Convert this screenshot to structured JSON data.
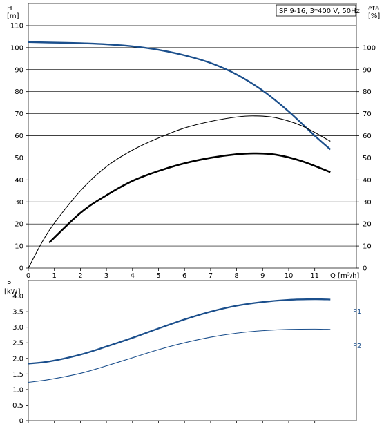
{
  "chart_data": [
    {
      "type": "line",
      "title": "SP 9-16, 3*400 V, 50Hz",
      "ylabel_left": [
        "H",
        "[m]"
      ],
      "ylabel_right": [
        "eta",
        "[%]"
      ],
      "xlabel": "Q [m³/h]",
      "xlim": [
        0,
        12.6
      ],
      "ylim": [
        0,
        120
      ],
      "x_ticks": [
        "0",
        "1",
        "2",
        "3",
        "4",
        "5",
        "6",
        "7",
        "8",
        "9",
        "10",
        "11"
      ],
      "y_ticks_left": [
        "0",
        "10",
        "20",
        "30",
        "40",
        "50",
        "60",
        "70",
        "80",
        "90",
        "100",
        "110"
      ],
      "y_ticks_right": [
        "0",
        "10",
        "20",
        "30",
        "40",
        "50",
        "60",
        "70",
        "80",
        "90",
        "100"
      ],
      "grid": "horizontal",
      "series": [
        {
          "color": "#1b4f8c",
          "points": [
            [
              0,
              102.5
            ],
            [
              0.8,
              102.3
            ],
            [
              2,
              102
            ],
            [
              3,
              101.5
            ],
            [
              4,
              100.6
            ],
            [
              5,
              99
            ],
            [
              6,
              96.5
            ],
            [
              7,
              93
            ],
            [
              8,
              87.8
            ],
            [
              9,
              80.5
            ],
            [
              10,
              71
            ],
            [
              11,
              60
            ],
            [
              11.6,
              53.8
            ]
          ]
        },
        {
          "color": "#000000",
          "points": [
            [
              0,
              0
            ],
            [
              0.8,
              17
            ],
            [
              2,
              35
            ],
            [
              3,
              46
            ],
            [
              4,
              53.5
            ],
            [
              5,
              59
            ],
            [
              6,
              63.5
            ],
            [
              7,
              66.5
            ],
            [
              8,
              68.5
            ],
            [
              8.7,
              69
            ],
            [
              9.5,
              68.2
            ],
            [
              10.5,
              64.5
            ],
            [
              11.6,
              57.5
            ]
          ]
        },
        {
          "color": "#000000",
          "points": [
            [
              0.8,
              11.5
            ],
            [
              2,
              25
            ],
            [
              3,
              33
            ],
            [
              4,
              39.5
            ],
            [
              5,
              44
            ],
            [
              6,
              47.5
            ],
            [
              7,
              50
            ],
            [
              8,
              51.6
            ],
            [
              8.7,
              52
            ],
            [
              9.5,
              51.4
            ],
            [
              10.5,
              48.5
            ],
            [
              11.6,
              43.5
            ]
          ]
        }
      ]
    },
    {
      "type": "line",
      "ylabel": [
        "P",
        "[kW]"
      ],
      "xlim": [
        0,
        12.6
      ],
      "ylim": [
        0,
        4.5
      ],
      "y_ticks": [
        "0",
        "0.5",
        "1.0",
        "1.5",
        "2.0",
        "2.5",
        "3.0",
        "3.5",
        "4.0"
      ],
      "grid": "none",
      "series": [
        {
          "name": "P1",
          "color": "#1b4f8c",
          "points": [
            [
              0,
              1.83
            ],
            [
              0.8,
              1.9
            ],
            [
              2,
              2.12
            ],
            [
              3,
              2.38
            ],
            [
              4,
              2.66
            ],
            [
              5,
              2.96
            ],
            [
              6,
              3.25
            ],
            [
              7,
              3.5
            ],
            [
              8,
              3.69
            ],
            [
              9,
              3.81
            ],
            [
              10,
              3.88
            ],
            [
              11,
              3.9
            ],
            [
              11.6,
              3.89
            ]
          ]
        },
        {
          "name": "P2",
          "color": "#1b4f8c",
          "points": [
            [
              0,
              1.23
            ],
            [
              0.8,
              1.32
            ],
            [
              2,
              1.52
            ],
            [
              3,
              1.76
            ],
            [
              4,
              2.02
            ],
            [
              5,
              2.28
            ],
            [
              6,
              2.5
            ],
            [
              7,
              2.68
            ],
            [
              8,
              2.81
            ],
            [
              9,
              2.89
            ],
            [
              10,
              2.93
            ],
            [
              11,
              2.94
            ],
            [
              11.6,
              2.93
            ]
          ]
        }
      ]
    }
  ]
}
